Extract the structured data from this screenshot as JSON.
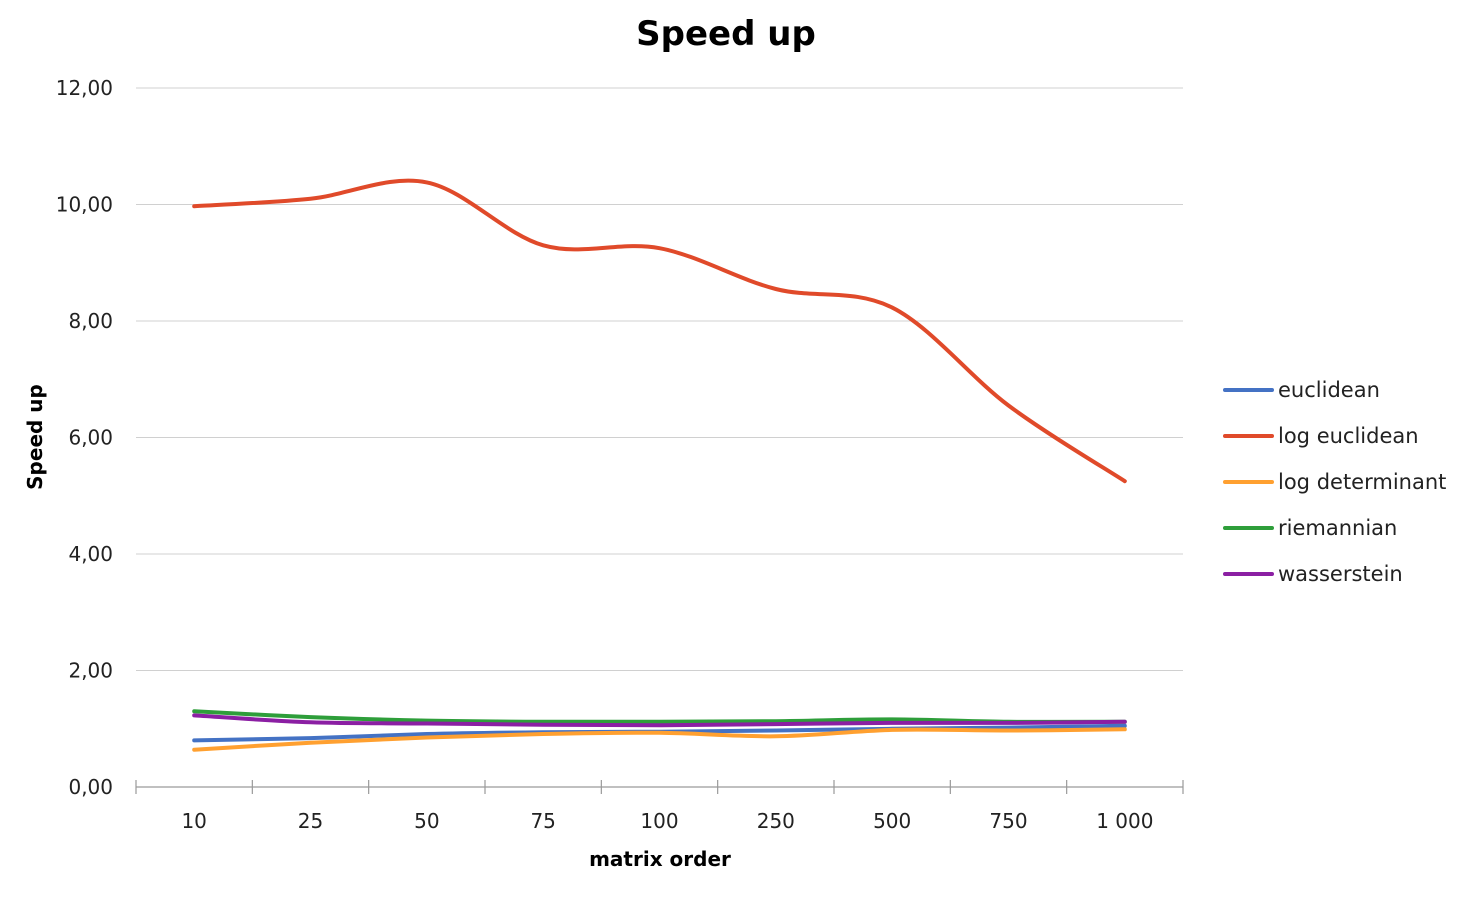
{
  "chart_data": {
    "type": "line",
    "title": "Speed up",
    "xlabel": "matrix order",
    "ylabel": "Speed up",
    "categories": [
      "10",
      "25",
      "50",
      "75",
      "100",
      "250",
      "500",
      "750",
      "1 000"
    ],
    "ylim": [
      0,
      12
    ],
    "yticks": [
      0,
      2,
      4,
      6,
      8,
      10,
      12
    ],
    "ytick_labels": [
      "0,00",
      "2,00",
      "4,00",
      "6,00",
      "8,00",
      "10,00",
      "12,00"
    ],
    "grid": true,
    "smooth": true,
    "legend": "right",
    "series": [
      {
        "name": "euclidean",
        "color": "#4472C4",
        "values": [
          0.8,
          0.84,
          0.91,
          0.94,
          0.95,
          0.97,
          1.0,
          1.02,
          1.05
        ]
      },
      {
        "name": "log euclidean",
        "color": "#E04A2A",
        "values": [
          9.97,
          10.1,
          10.38,
          9.3,
          9.25,
          8.55,
          8.23,
          6.55,
          5.25
        ]
      },
      {
        "name": "log determinant",
        "color": "#FFA030",
        "values": [
          0.64,
          0.76,
          0.85,
          0.91,
          0.93,
          0.87,
          0.98,
          0.97,
          0.99
        ]
      },
      {
        "name": "riemannian",
        "color": "#2E9E3A",
        "values": [
          1.3,
          1.2,
          1.14,
          1.12,
          1.12,
          1.13,
          1.16,
          1.12,
          1.12
        ]
      },
      {
        "name": "wasserstein",
        "color": "#8B1FA3",
        "values": [
          1.23,
          1.11,
          1.09,
          1.07,
          1.06,
          1.08,
          1.1,
          1.1,
          1.12
        ]
      }
    ]
  }
}
